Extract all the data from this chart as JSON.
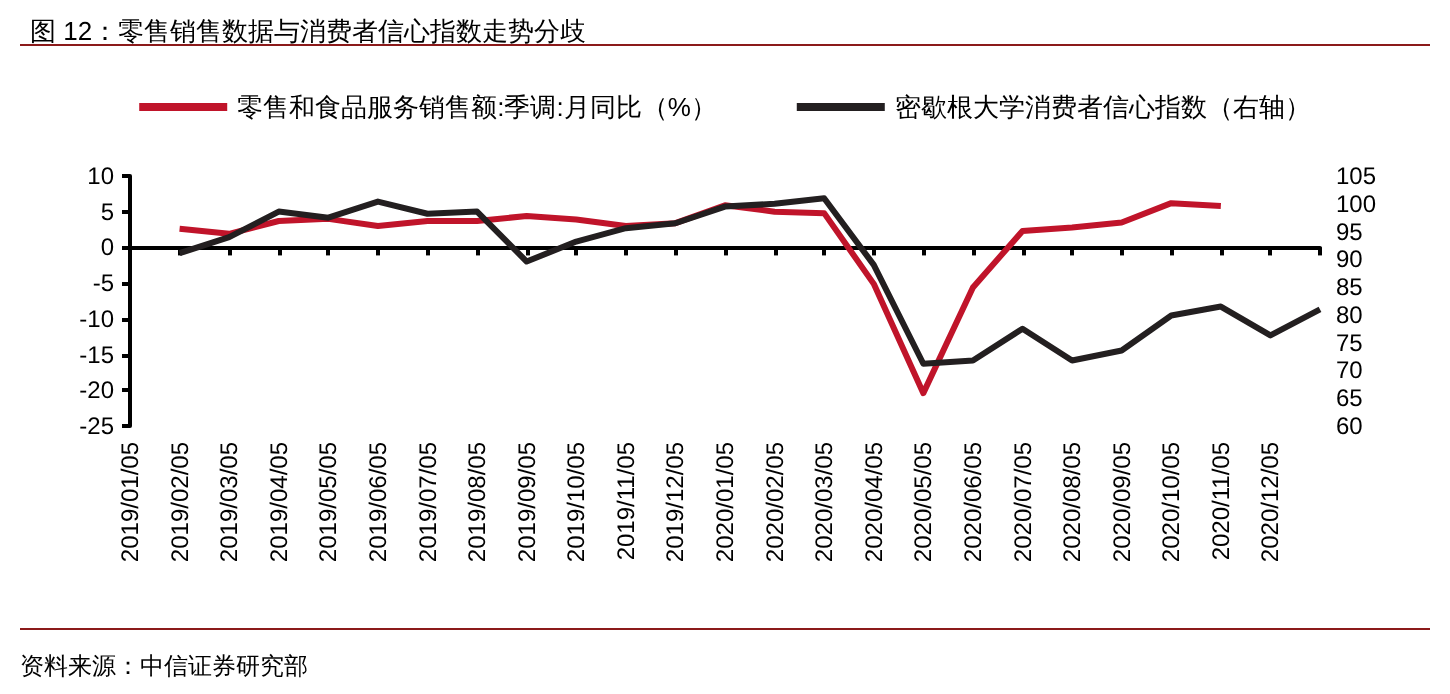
{
  "chart_data": {
    "type": "line",
    "title": "图 12：零售销售数据与消费者信心指数走势分歧",
    "categories": [
      "2019/01/05",
      "2019/02/05",
      "2019/03/05",
      "2019/04/05",
      "2019/05/05",
      "2019/06/05",
      "2019/07/05",
      "2019/08/05",
      "2019/09/05",
      "2019/10/05",
      "2019/11/05",
      "2019/12/05",
      "2020/01/05",
      "2020/02/05",
      "2020/03/05",
      "2020/04/05",
      "2020/05/05",
      "2020/06/05",
      "2020/07/05",
      "2020/08/05",
      "2020/09/05",
      "2020/10/05",
      "2020/11/05",
      "2020/12/05",
      null
    ],
    "series": [
      {
        "name": "零售和食品服务销售额:季调:月同比（%）",
        "color": "#c0142a",
        "values": [
          null,
          2.6,
          1.9,
          3.7,
          4.0,
          3.0,
          3.7,
          3.7,
          4.4,
          3.9,
          3.0,
          3.4,
          5.9,
          5.0,
          4.8,
          -5.1,
          -20.4,
          -5.6,
          2.3,
          2.8,
          3.5,
          6.2,
          5.8,
          null,
          null
        ]
      },
      {
        "name": "密歇根大学消费者信心指数（右轴）",
        "color": "#231f20",
        "axis": "y2",
        "values": [
          null,
          91.1,
          94.0,
          98.6,
          97.5,
          100.4,
          98.2,
          98.6,
          89.6,
          93.2,
          95.6,
          96.5,
          99.5,
          100.0,
          101.0,
          89.0,
          71.2,
          71.8,
          77.5,
          71.8,
          73.6,
          79.9,
          81.5,
          76.3,
          81.0
        ]
      }
    ],
    "ylim": [
      -25,
      10
    ],
    "yticks": [
      -25,
      -20,
      -15,
      -10,
      -5,
      0,
      5,
      10
    ],
    "y2lim": [
      60,
      105
    ],
    "y2ticks": [
      60,
      65,
      70,
      75,
      80,
      85,
      90,
      95,
      100,
      105
    ],
    "legend": "top",
    "marker": "none",
    "line_style": "solid",
    "annotations": [
      "资料来源：中信证券研究部"
    ]
  }
}
